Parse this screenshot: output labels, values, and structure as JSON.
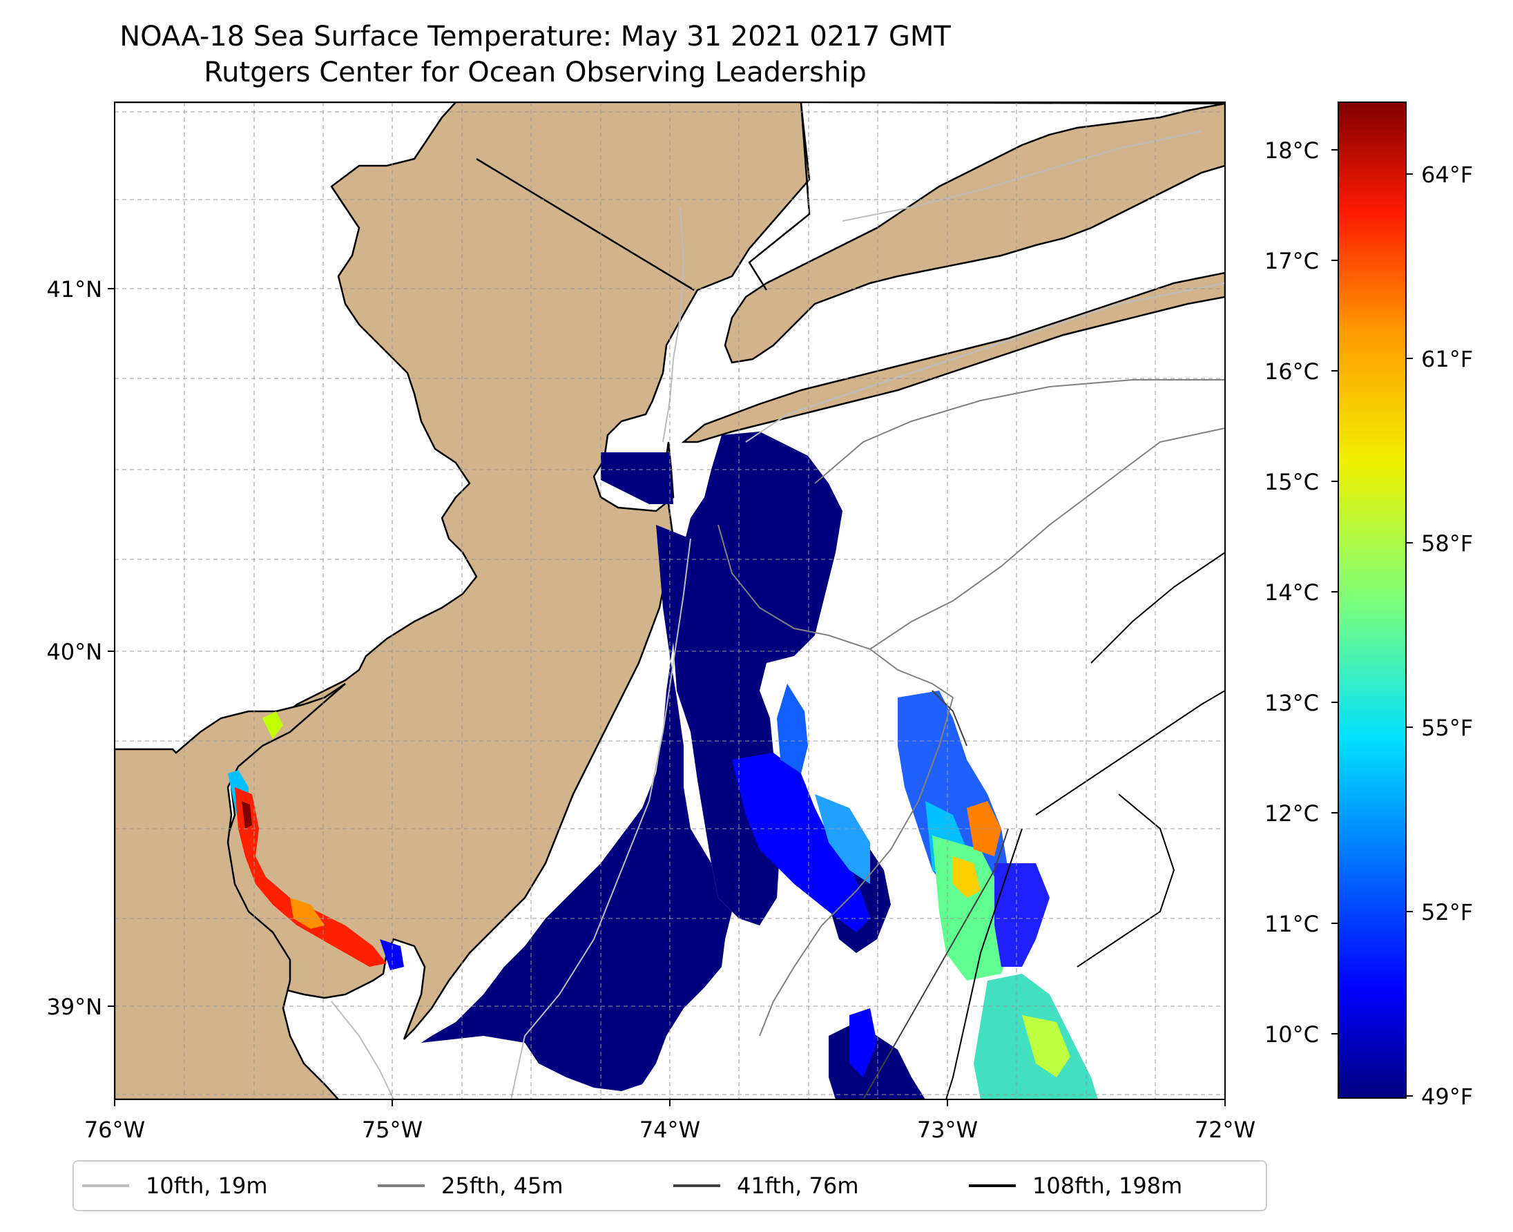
{
  "title": {
    "line1": "NOAA-18 Sea Surface Temperature: May 31 2021 0217 GMT",
    "line2": "Rutgers Center for Ocean Observing Leadership"
  },
  "axes": {
    "x_ticks": [
      "76°W",
      "75°W",
      "74°W",
      "73°W",
      "72°W"
    ],
    "y_ticks": [
      "41°N",
      "40°N",
      "39°N"
    ],
    "x_range": [
      -76,
      -72
    ],
    "y_range": [
      38.75,
      41.55
    ]
  },
  "colorbar": {
    "colormap": "jet",
    "celsius_ticks": [
      "18°C",
      "17°C",
      "16°C",
      "15°C",
      "14°C",
      "13°C",
      "12°C",
      "11°C",
      "10°C"
    ],
    "fahrenheit_ticks": [
      "64°F",
      "61°F",
      "58°F",
      "55°F",
      "52°F",
      "49°F"
    ],
    "range_f": [
      49,
      65
    ]
  },
  "legend": [
    {
      "label": "10fth, 19m",
      "color": "#bdbdbd"
    },
    {
      "label": "25fth, 45m",
      "color": "#808080"
    },
    {
      "label": "41fth, 76m",
      "color": "#404040"
    },
    {
      "label": "108fth, 198m",
      "color": "#000000"
    }
  ],
  "colors": {
    "land": "#d2b48c",
    "ocean": "#ffffff",
    "cold_water": "#00007f"
  }
}
